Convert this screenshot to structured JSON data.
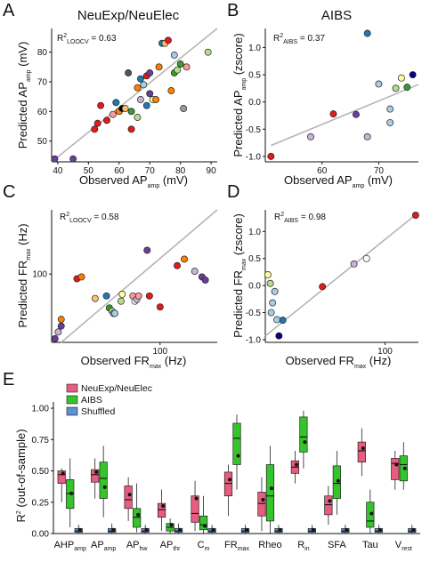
{
  "panels": {
    "A": {
      "letter": "A",
      "title": "NeuExp/NeuElec",
      "xlabel": "Observed AP",
      "xlabel_sub": "amp",
      "xlabel_unit": " (mV)",
      "ylabel": "Predicted AP",
      "ylabel_sub": "amp",
      "ylabel_unit": " (mV)",
      "annotation": "R",
      "annotation_sup": "2",
      "annotation_sub": "LOOCV",
      "annotation_value": " = 0.63"
    },
    "B": {
      "letter": "B",
      "title": "AIBS",
      "xlabel": "Observed AP",
      "xlabel_sub": "amp",
      "xlabel_unit": " (mV)",
      "ylabel": "Predicted AP",
      "ylabel_sub": "amp",
      "ylabel_unit": " (zscore)",
      "annotation": "R",
      "annotation_sup": "2",
      "annotation_sub": "AIBS",
      "annotation_value": " = 0.37"
    },
    "C": {
      "letter": "C",
      "xlabel": "Observed FR",
      "xlabel_sub": "max",
      "xlabel_unit": " (Hz)",
      "ylabel": "Predicted FR",
      "ylabel_sub": "max",
      "ylabel_unit": " (Hz)",
      "annotation": "R",
      "annotation_sup": "2",
      "annotation_sub": "LOOCV",
      "annotation_value": " = 0.58"
    },
    "D": {
      "letter": "D",
      "xlabel": "Observed FR",
      "xlabel_sub": "max",
      "xlabel_unit": " (Hz)",
      "ylabel": "Predicted FR",
      "ylabel_sub": "max",
      "ylabel_unit": " (zscore)",
      "annotation": "R",
      "annotation_sup": "2",
      "annotation_sub": "AIBS",
      "annotation_value": " = 0.98"
    },
    "E": {
      "letter": "E",
      "ylabel": "R",
      "ylabel_sup": "2",
      "ylabel_rest": " (out-of-sample)"
    }
  },
  "chart_data": [
    {
      "panel": "A",
      "type": "scatter",
      "xlim": [
        38,
        92
      ],
      "ylim": [
        43,
        88
      ],
      "xticks": [
        40,
        50,
        60,
        70,
        80,
        90
      ],
      "yticks": [
        50,
        60,
        70,
        80
      ],
      "fit_line": [
        [
          38,
          40
        ],
        [
          92,
          88
        ]
      ],
      "points": [
        {
          "x": 39,
          "y": 44,
          "color": "#6a3d9a"
        },
        {
          "x": 45,
          "y": 44,
          "color": "#6a3d9a"
        },
        {
          "x": 52,
          "y": 54,
          "color": "#e31a1c"
        },
        {
          "x": 53,
          "y": 56,
          "color": "#e31a1c"
        },
        {
          "x": 54,
          "y": 62,
          "color": "#e31a1c"
        },
        {
          "x": 56,
          "y": 57,
          "color": "#e31a1c"
        },
        {
          "x": 58,
          "y": 59,
          "color": "#fb9a99"
        },
        {
          "x": 59,
          "y": 63,
          "color": "#1f78b4"
        },
        {
          "x": 60,
          "y": 60,
          "color": "#ff7f00"
        },
        {
          "x": 61,
          "y": 61,
          "color": "#000000"
        },
        {
          "x": 62,
          "y": 61,
          "color": "#fdbf6f"
        },
        {
          "x": 63,
          "y": 73,
          "color": "#555555"
        },
        {
          "x": 64,
          "y": 54,
          "color": "#e31a1c"
        },
        {
          "x": 64,
          "y": 60,
          "color": "#33a02c"
        },
        {
          "x": 66,
          "y": 58,
          "color": "#b2df8a"
        },
        {
          "x": 66,
          "y": 68,
          "color": "#ff7f00"
        },
        {
          "x": 67,
          "y": 64,
          "color": "#cab2d6"
        },
        {
          "x": 67,
          "y": 71,
          "color": "#1f78b4"
        },
        {
          "x": 68,
          "y": 69,
          "color": "#a6cee3"
        },
        {
          "x": 69,
          "y": 62,
          "color": "#1f78b4"
        },
        {
          "x": 69,
          "y": 72,
          "color": "#e31a1c"
        },
        {
          "x": 70,
          "y": 66,
          "color": "#6a3d9a"
        },
        {
          "x": 70,
          "y": 73,
          "color": "#6a3d9a"
        },
        {
          "x": 71,
          "y": 64,
          "color": "#ffff99"
        },
        {
          "x": 72,
          "y": 64,
          "color": "#ff7f00"
        },
        {
          "x": 73,
          "y": 75,
          "color": "#ff7f00"
        },
        {
          "x": 74,
          "y": 83,
          "color": "#1f78b4"
        },
        {
          "x": 75,
          "y": 83,
          "color": "#fdbf6f"
        },
        {
          "x": 76,
          "y": 84,
          "color": "#e31a1c"
        },
        {
          "x": 77,
          "y": 67,
          "color": "#ff7f00"
        },
        {
          "x": 78,
          "y": 79,
          "color": "#a6cee3"
        },
        {
          "x": 78,
          "y": 73,
          "color": "#33a02c"
        },
        {
          "x": 79,
          "y": 74,
          "color": "#b2df8a"
        },
        {
          "x": 80,
          "y": 76,
          "color": "#33a02c"
        },
        {
          "x": 81,
          "y": 61,
          "color": "#999999"
        },
        {
          "x": 82,
          "y": 75,
          "color": "#fb9a99"
        },
        {
          "x": 89,
          "y": 80,
          "color": "#b2df8a"
        }
      ]
    },
    {
      "panel": "B",
      "type": "scatter",
      "xlim": [
        50,
        77
      ],
      "ylim": [
        -1.1,
        1.35
      ],
      "xticks": [
        60,
        70
      ],
      "yticks": [
        -1.0,
        -0.5,
        0.0,
        0.5,
        1.0
      ],
      "fit_line": [
        [
          51,
          -0.8
        ],
        [
          77,
          0.32
        ]
      ],
      "points": [
        {
          "x": 51,
          "y": -1.0,
          "color": "#e31a1c"
        },
        {
          "x": 58,
          "y": -0.64,
          "color": "#cab2d6"
        },
        {
          "x": 62,
          "y": -0.22,
          "color": "#e31a1c"
        },
        {
          "x": 66,
          "y": -0.23,
          "color": "#6a3d9a"
        },
        {
          "x": 68,
          "y": -0.64,
          "color": "#cab2d6"
        },
        {
          "x": 68,
          "y": 1.26,
          "color": "#1f78b4"
        },
        {
          "x": 70,
          "y": 0.33,
          "color": "#a6cee3"
        },
        {
          "x": 72,
          "y": -0.38,
          "color": "#a6cee3"
        },
        {
          "x": 72,
          "y": -0.13,
          "color": "#a6cee3"
        },
        {
          "x": 73,
          "y": 0.25,
          "color": "#b2df8a"
        },
        {
          "x": 74,
          "y": 0.44,
          "color": "#ffff99"
        },
        {
          "x": 75,
          "y": 0.27,
          "color": "#33a02c"
        },
        {
          "x": 76,
          "y": 0.5,
          "color": "#000080"
        }
      ]
    },
    {
      "panel": "C",
      "type": "scatter",
      "xscale": "log",
      "yscale": "log",
      "xlim": [
        19,
        240
      ],
      "ylim": [
        30,
        310
      ],
      "xticks": [
        100
      ],
      "yticks": [
        100
      ],
      "fit_line": [
        [
          22,
          24
        ],
        [
          240,
          330
        ]
      ],
      "points": [
        {
          "x": 20,
          "y": 32,
          "color": "#6a3d9a"
        },
        {
          "x": 21,
          "y": 36,
          "color": "#cab2d6"
        },
        {
          "x": 22,
          "y": 40,
          "color": "#6a3d9a"
        },
        {
          "x": 22,
          "y": 45,
          "color": "#ff7f00"
        },
        {
          "x": 28,
          "y": 92,
          "color": "#e31a1c"
        },
        {
          "x": 30,
          "y": 95,
          "color": "#ff7f00"
        },
        {
          "x": 37,
          "y": 65,
          "color": "#fdbf6f"
        },
        {
          "x": 44,
          "y": 68,
          "color": "#1f78b4"
        },
        {
          "x": 46,
          "y": 55,
          "color": "#33a02c"
        },
        {
          "x": 48,
          "y": 52,
          "color": "#b2df8a"
        },
        {
          "x": 49,
          "y": 50,
          "color": "#a6cee3"
        },
        {
          "x": 50,
          "y": 50,
          "color": "#a6cee3"
        },
        {
          "x": 55,
          "y": 62,
          "color": "#b2df8a"
        },
        {
          "x": 56,
          "y": 70,
          "color": "#ffff99"
        },
        {
          "x": 66,
          "y": 68,
          "color": "#fb9a99"
        },
        {
          "x": 68,
          "y": 62,
          "color": "#ffffff"
        },
        {
          "x": 70,
          "y": 64,
          "color": "#cab2d6"
        },
        {
          "x": 72,
          "y": 68,
          "color": "#fb9a99"
        },
        {
          "x": 82,
          "y": 152,
          "color": "#6a3d9a"
        },
        {
          "x": 85,
          "y": 68,
          "color": "#e31a1c"
        },
        {
          "x": 100,
          "y": 56,
          "color": "#e31a1c"
        },
        {
          "x": 130,
          "y": 116,
          "color": "#e31a1c"
        },
        {
          "x": 145,
          "y": 130,
          "color": "#ff7f00"
        },
        {
          "x": 170,
          "y": 105,
          "color": "#cab2d6"
        },
        {
          "x": 190,
          "y": 95,
          "color": "#6a3d9a"
        },
        {
          "x": 200,
          "y": 90,
          "color": "#6a3d9a"
        }
      ]
    },
    {
      "panel": "D",
      "type": "scatter",
      "xscale": "log",
      "xlim": [
        10,
        190
      ],
      "ylim": [
        -1.05,
        1.4
      ],
      "xticks": [
        100
      ],
      "yticks": [
        -1.0,
        -0.5,
        0.0,
        0.5,
        1.0
      ],
      "fit_line": [
        [
          10,
          -0.93
        ],
        [
          190,
          1.35
        ]
      ],
      "points": [
        {
          "x": 10.5,
          "y": 0.2,
          "color": "#ffff99"
        },
        {
          "x": 11,
          "y": 0.04,
          "color": "#b2df8a"
        },
        {
          "x": 11.2,
          "y": -0.5,
          "color": "#a6cee3"
        },
        {
          "x": 11.5,
          "y": -0.32,
          "color": "#a6cee3"
        },
        {
          "x": 12,
          "y": -0.11,
          "color": "#a6cee3"
        },
        {
          "x": 12.5,
          "y": -0.63,
          "color": "#a6cee3"
        },
        {
          "x": 13,
          "y": -0.93,
          "color": "#000080"
        },
        {
          "x": 14,
          "y": -0.64,
          "color": "#1f78b4"
        },
        {
          "x": 30,
          "y": -0.02,
          "color": "#e31a1c"
        },
        {
          "x": 55,
          "y": 0.4,
          "color": "#cab2d6"
        },
        {
          "x": 70,
          "y": 0.5,
          "color": "#ffffff"
        },
        {
          "x": 180,
          "y": 1.3,
          "color": "#e31a1c"
        }
      ]
    },
    {
      "panel": "E",
      "type": "box",
      "ylim": [
        0,
        1.05
      ],
      "yticks": [
        0.0,
        0.25,
        0.5,
        0.75,
        1.0
      ],
      "ytick_labels": [
        "0.00",
        "0.25",
        "0.50",
        "0.75",
        "1.00"
      ],
      "legend": [
        {
          "name": "NeuExp/NeuElec",
          "color": "#e85c7e"
        },
        {
          "name": "AIBS",
          "color": "#35c42b"
        },
        {
          "name": "Shuffled",
          "color": "#5b8fd6"
        }
      ],
      "legend_position": "top-left",
      "categories": [
        {
          "label": "AHP",
          "sub": "amp"
        },
        {
          "label": "AP",
          "sub": "amp"
        },
        {
          "label": "AP",
          "sub": "hw"
        },
        {
          "label": "AP",
          "sub": "thr"
        },
        {
          "label": "C",
          "sub": "m"
        },
        {
          "label": "FR",
          "sub": "max"
        },
        {
          "label": "Rheo",
          "sub": ""
        },
        {
          "label": "R",
          "sub": "in"
        },
        {
          "label": "SFA",
          "sub": ""
        },
        {
          "label": "Tau",
          "sub": ""
        },
        {
          "label": "V",
          "sub": "rest"
        }
      ],
      "series": [
        {
          "name": "NeuExp/NeuElec",
          "boxes": [
            {
              "min": 0.25,
              "q1": 0.4,
              "median": 0.47,
              "q3": 0.5,
              "max": 0.52,
              "mean": 0.48
            },
            {
              "min": 0.28,
              "q1": 0.41,
              "median": 0.47,
              "q3": 0.51,
              "max": 0.6,
              "mean": 0.49
            },
            {
              "min": 0.1,
              "q1": 0.2,
              "median": 0.27,
              "q3": 0.38,
              "max": 0.45,
              "mean": 0.31
            },
            {
              "min": 0.02,
              "q1": 0.13,
              "median": 0.19,
              "q3": 0.24,
              "max": 0.35,
              "mean": 0.22
            },
            {
              "min": 0.02,
              "q1": 0.09,
              "median": 0.16,
              "q3": 0.3,
              "max": 0.42,
              "mean": 0.28
            },
            {
              "min": 0.14,
              "q1": 0.3,
              "median": 0.4,
              "q3": 0.49,
              "max": 0.55,
              "mean": 0.43
            },
            {
              "min": 0.02,
              "q1": 0.14,
              "median": 0.24,
              "q3": 0.33,
              "max": 0.45,
              "mean": 0.27
            },
            {
              "min": 0.4,
              "q1": 0.48,
              "median": 0.53,
              "q3": 0.58,
              "max": 0.66,
              "mean": 0.55
            },
            {
              "min": 0.07,
              "q1": 0.15,
              "median": 0.23,
              "q3": 0.3,
              "max": 0.38,
              "mean": 0.26
            },
            {
              "min": 0.46,
              "q1": 0.57,
              "median": 0.66,
              "q3": 0.73,
              "max": 0.84,
              "mean": 0.68
            },
            {
              "min": 0.35,
              "q1": 0.43,
              "median": 0.56,
              "q3": 0.6,
              "max": 0.66,
              "mean": 0.55
            }
          ]
        },
        {
          "name": "AIBS",
          "boxes": [
            {
              "min": 0.05,
              "q1": 0.2,
              "median": 0.32,
              "q3": 0.43,
              "max": 0.6,
              "mean": 0.32
            },
            {
              "min": 0.13,
              "q1": 0.28,
              "median": 0.44,
              "q3": 0.57,
              "max": 0.7,
              "mean": 0.37
            },
            {
              "min": 0.01,
              "q1": 0.05,
              "median": 0.13,
              "q3": 0.2,
              "max": 0.4,
              "mean": 0.15
            },
            {
              "min": 0.0,
              "q1": 0.02,
              "median": 0.05,
              "q3": 0.08,
              "max": 0.12,
              "mean": 0.07
            },
            {
              "min": 0.0,
              "q1": 0.03,
              "median": 0.07,
              "q3": 0.14,
              "max": 0.3,
              "mean": 0.06
            },
            {
              "min": 0.35,
              "q1": 0.55,
              "median": 0.76,
              "q3": 0.88,
              "max": 0.95,
              "mean": 0.62
            },
            {
              "min": 0.0,
              "q1": 0.1,
              "median": 0.3,
              "q3": 0.55,
              "max": 0.7,
              "mean": 0.36
            },
            {
              "min": 0.52,
              "q1": 0.65,
              "median": 0.77,
              "q3": 0.93,
              "max": 0.98,
              "mean": 0.73
            },
            {
              "min": 0.15,
              "q1": 0.28,
              "median": 0.4,
              "q3": 0.54,
              "max": 0.66,
              "mean": 0.42
            },
            {
              "min": 0.0,
              "q1": 0.05,
              "median": 0.1,
              "q3": 0.25,
              "max": 0.35,
              "mean": 0.16
            },
            {
              "min": 0.35,
              "q1": 0.42,
              "median": 0.55,
              "q3": 0.62,
              "max": 0.73,
              "mean": 0.52
            }
          ]
        },
        {
          "name": "Shuffled",
          "boxes": [
            {
              "min": 0.0,
              "q1": 0.01,
              "median": 0.02,
              "q3": 0.04,
              "max": 0.07,
              "mean": 0.03
            },
            {
              "min": 0.0,
              "q1": 0.01,
              "median": 0.02,
              "q3": 0.04,
              "max": 0.08,
              "mean": 0.03
            },
            {
              "min": 0.0,
              "q1": 0.01,
              "median": 0.02,
              "q3": 0.04,
              "max": 0.07,
              "mean": 0.03
            },
            {
              "min": 0.0,
              "q1": 0.01,
              "median": 0.02,
              "q3": 0.04,
              "max": 0.08,
              "mean": 0.03
            },
            {
              "min": 0.0,
              "q1": 0.01,
              "median": 0.02,
              "q3": 0.04,
              "max": 0.07,
              "mean": 0.03
            },
            {
              "min": 0.0,
              "q1": 0.01,
              "median": 0.02,
              "q3": 0.04,
              "max": 0.07,
              "mean": 0.03
            },
            {
              "min": 0.0,
              "q1": 0.01,
              "median": 0.02,
              "q3": 0.04,
              "max": 0.07,
              "mean": 0.03
            },
            {
              "min": 0.0,
              "q1": 0.01,
              "median": 0.02,
              "q3": 0.04,
              "max": 0.07,
              "mean": 0.03
            },
            {
              "min": 0.0,
              "q1": 0.01,
              "median": 0.02,
              "q3": 0.04,
              "max": 0.07,
              "mean": 0.03
            },
            {
              "min": 0.0,
              "q1": 0.01,
              "median": 0.02,
              "q3": 0.04,
              "max": 0.07,
              "mean": 0.03
            },
            {
              "min": 0.0,
              "q1": 0.01,
              "median": 0.02,
              "q3": 0.04,
              "max": 0.07,
              "mean": 0.03
            }
          ]
        }
      ]
    }
  ]
}
